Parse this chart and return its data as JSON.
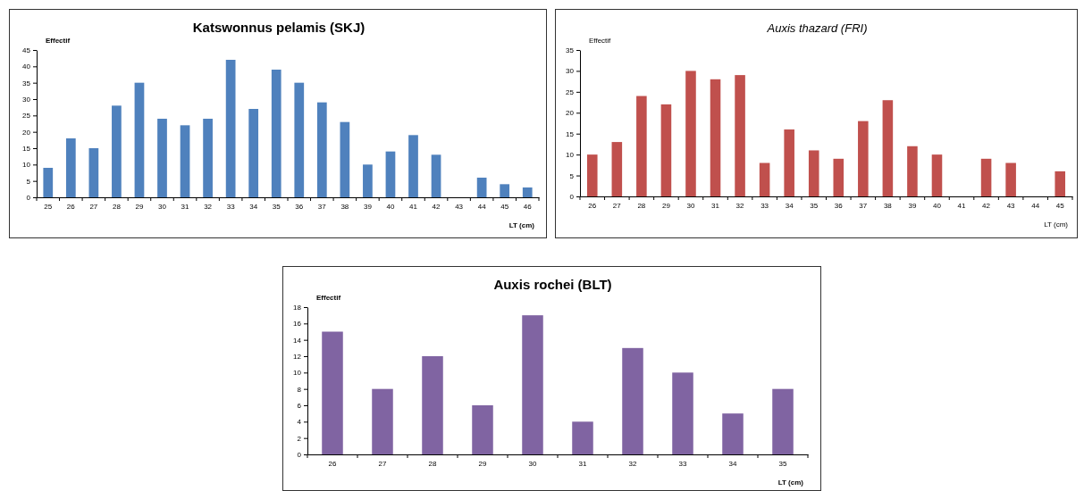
{
  "chart_data": [
    {
      "type": "bar",
      "title": "Katswonnus pelamis (SKJ)",
      "xlabel": "LT (cm)",
      "ylabel": "Effectif",
      "categories": [
        "25",
        "26",
        "27",
        "28",
        "29",
        "30",
        "31",
        "32",
        "33",
        "34",
        "35",
        "36",
        "37",
        "38",
        "39",
        "40",
        "41",
        "42",
        "43",
        "44",
        "45",
        "46"
      ],
      "values": [
        9,
        18,
        15,
        28,
        35,
        24,
        22,
        24,
        42,
        27,
        39,
        35,
        29,
        23,
        10,
        14,
        19,
        13,
        0,
        6,
        4,
        3
      ],
      "color": "#4f81bd",
      "ylim": [
        0,
        45
      ],
      "yticks": [
        0,
        5,
        10,
        15,
        20,
        25,
        30,
        35,
        40,
        45
      ]
    },
    {
      "type": "bar",
      "title": "Auxis thazard (FRI)",
      "xlabel": "LT (cm)",
      "ylabel": "Effectif",
      "categories": [
        "26",
        "27",
        "28",
        "29",
        "30",
        "31",
        "32",
        "33",
        "34",
        "35",
        "36",
        "37",
        "38",
        "39",
        "40",
        "41",
        "42",
        "43",
        "44",
        "45"
      ],
      "values": [
        10,
        13,
        24,
        22,
        30,
        28,
        29,
        8,
        16,
        11,
        9,
        18,
        23,
        12,
        10,
        0,
        9,
        8,
        0,
        6
      ],
      "color": "#c0504d",
      "ylim": [
        0,
        35
      ],
      "yticks": [
        0,
        5,
        10,
        15,
        20,
        25,
        30,
        35
      ]
    },
    {
      "type": "bar",
      "title": "Auxis rochei (BLT)",
      "xlabel": "LT (cm)",
      "ylabel": "Effectif",
      "categories": [
        "26",
        "27",
        "28",
        "29",
        "30",
        "31",
        "32",
        "33",
        "34",
        "35"
      ],
      "values": [
        15,
        8,
        12,
        6,
        17,
        4,
        13,
        10,
        5,
        8
      ],
      "color": "#8064a2",
      "ylim": [
        0,
        18
      ],
      "yticks": [
        0,
        2,
        4,
        6,
        8,
        10,
        12,
        14,
        16,
        18
      ]
    }
  ]
}
